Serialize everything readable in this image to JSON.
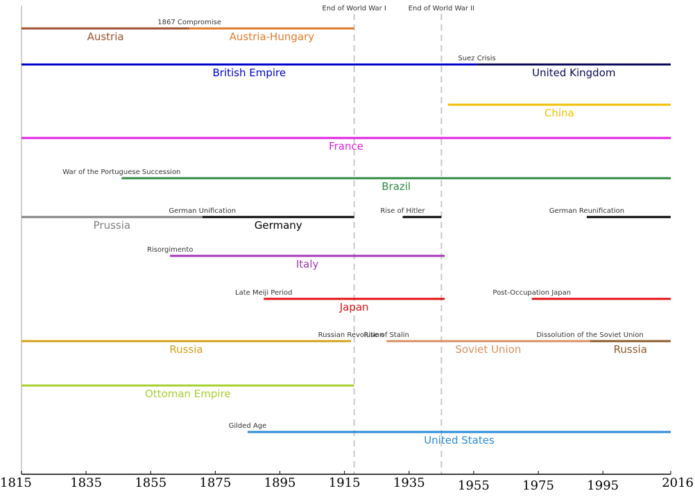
{
  "chart_data": {
    "type": "timeline",
    "title": "",
    "xlabel": "",
    "ylabel": "",
    "xlim": [
      1815,
      2016
    ],
    "ticks": [
      {
        "year": 1815,
        "label": "1815"
      },
      {
        "year": 1835,
        "label": "1835"
      },
      {
        "year": 1855,
        "label": "1855"
      },
      {
        "year": 1875,
        "label": "1875"
      },
      {
        "year": 1895,
        "label": "1895"
      },
      {
        "year": 1915,
        "label": "1915"
      },
      {
        "year": 1935,
        "label": "1935"
      },
      {
        "year": 1955,
        "label": "1955"
      },
      {
        "year": 1975,
        "label": "1975"
      },
      {
        "year": 1995,
        "label": "1995"
      },
      {
        "year": 2016,
        "label": "2016"
      }
    ],
    "reference_lines": [
      {
        "year": 1918,
        "label": "End of World War I"
      },
      {
        "year": 1945,
        "label": "End of World War II"
      }
    ],
    "rows": [
      {
        "country": "Austria",
        "segments": [
          {
            "name": "Austria",
            "start": 1815,
            "end": 1867,
            "color": "#a0522d"
          },
          {
            "name": "Austria-Hungary",
            "start": 1867,
            "end": 1918,
            "color": "#e07b2c"
          }
        ],
        "events": [
          {
            "label": "1867 Compromise",
            "year": 1867
          }
        ]
      },
      {
        "country": "United Kingdom",
        "segments": [
          {
            "name": "British Empire",
            "start": 1815,
            "end": 1956,
            "color": "#0000cd"
          },
          {
            "name": "United Kingdom",
            "start": 1956,
            "end": 2016,
            "color": "#0a0a5a"
          }
        ],
        "events": [
          {
            "label": "Suez Crisis",
            "year": 1956
          }
        ]
      },
      {
        "country": "China",
        "segments": [
          {
            "name": "China",
            "start": 1947,
            "end": 2016,
            "color": "#f0c000"
          }
        ],
        "events": []
      },
      {
        "country": "France",
        "segments": [
          {
            "name": "France",
            "start": 1815,
            "end": 2016,
            "color": "#e020e0"
          }
        ],
        "events": []
      },
      {
        "country": "Brazil",
        "segments": [
          {
            "name": "Brazil",
            "start": 1846,
            "end": 2016,
            "color": "#2e8b40"
          }
        ],
        "events": [
          {
            "label": "War of the Portuguese Succession",
            "year": 1846
          }
        ]
      },
      {
        "country": "Germany",
        "segments": [
          {
            "name": "Prussia",
            "start": 1815,
            "end": 1871,
            "color": "#808080"
          },
          {
            "name": "Germany",
            "start": 1871,
            "end": 1918,
            "color": "#000000"
          },
          {
            "name": "",
            "start": 1933,
            "end": 1945,
            "color": "#000000"
          },
          {
            "name": "",
            "start": 1990,
            "end": 2016,
            "color": "#000000"
          }
        ],
        "events": [
          {
            "label": "German Unification",
            "year": 1871
          },
          {
            "label": "Rise of Hitler",
            "year": 1933
          },
          {
            "label": "German Reunification",
            "year": 1990
          }
        ]
      },
      {
        "country": "Italy",
        "segments": [
          {
            "name": "Italy",
            "start": 1861,
            "end": 1946,
            "color": "#a335b5"
          }
        ],
        "events": [
          {
            "label": "Risorgimento",
            "year": 1861
          }
        ]
      },
      {
        "country": "Japan",
        "segments": [
          {
            "name": "Japan",
            "start": 1890,
            "end": 1946,
            "color": "#e01010"
          },
          {
            "name": "",
            "start": 1973,
            "end": 2016,
            "color": "#e01010"
          }
        ],
        "events": [
          {
            "label": "Late Meiji Period",
            "year": 1890
          },
          {
            "label": "Post-Occupation Japan",
            "year": 1973
          }
        ]
      },
      {
        "country": "Russia",
        "segments": [
          {
            "name": "Russia",
            "start": 1815,
            "end": 1917,
            "color": "#d4a017"
          },
          {
            "name": "Soviet Union",
            "start": 1928,
            "end": 1991,
            "color": "#d89060"
          },
          {
            "name": "Russia",
            "start": 1991,
            "end": 2016,
            "color": "#8b5a2b"
          }
        ],
        "events": [
          {
            "label": "Russian Revolution",
            "year": 1917
          },
          {
            "label": "Rise of Stalin",
            "year": 1928
          },
          {
            "label": "Dissolution of the Soviet Union",
            "year": 1991
          }
        ]
      },
      {
        "country": "Ottoman Empire",
        "segments": [
          {
            "name": "Ottoman Empire",
            "start": 1815,
            "end": 1918,
            "color": "#a8d030"
          }
        ],
        "events": []
      },
      {
        "country": "United States",
        "segments": [
          {
            "name": "United States",
            "start": 1885,
            "end": 2016,
            "color": "#2a8ad8"
          }
        ],
        "events": [
          {
            "label": "Gilded Age",
            "year": 1885
          }
        ]
      }
    ]
  }
}
